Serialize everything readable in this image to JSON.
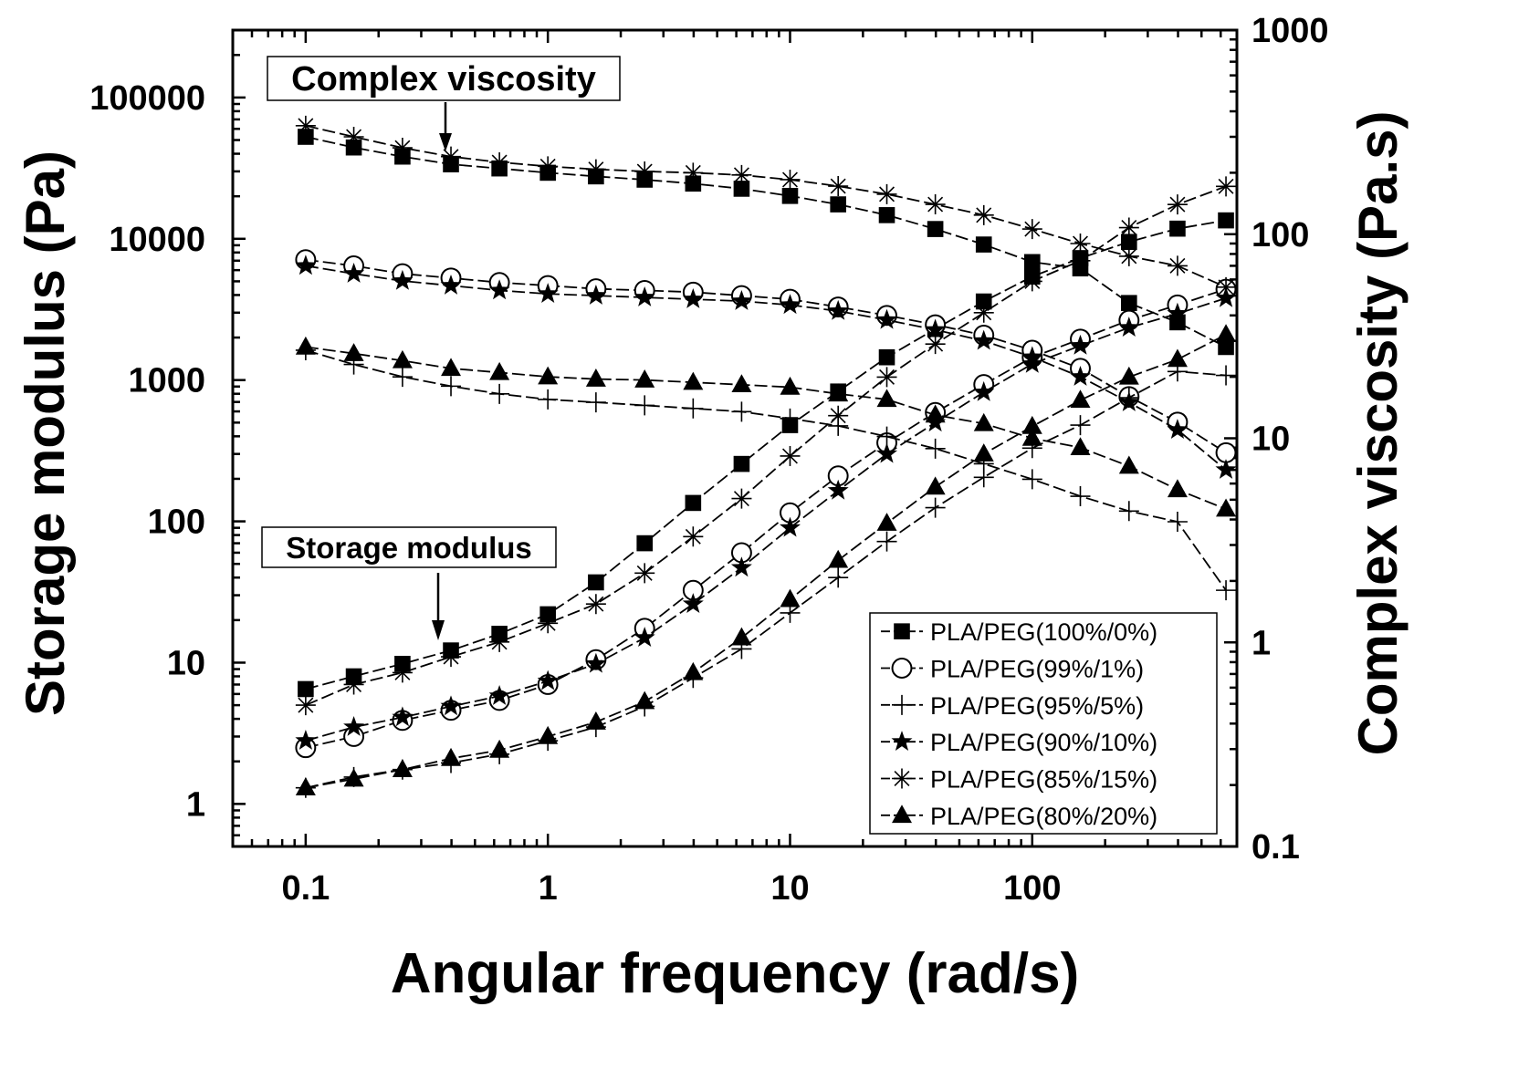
{
  "chart_data": {
    "type": "scatter",
    "xlabel": "Angular frequency (rad/s)",
    "ylabel": "Storage modulus (Pa)",
    "y2label": "Complex viscosity (Pa.s)",
    "x_scale": "log",
    "y_scale": "log",
    "y2_scale": "log",
    "xlim": [
      0.05,
      700
    ],
    "ylim": [
      0.5,
      300000
    ],
    "y2lim": [
      0.1,
      1000
    ],
    "x_ticks": [
      0.1,
      1,
      10,
      100
    ],
    "x_tick_labels": [
      "0.1",
      "1",
      "10",
      "100"
    ],
    "y_ticks": [
      1,
      10,
      100,
      1000,
      10000,
      100000
    ],
    "y_tick_labels": [
      "1",
      "10",
      "100",
      "1000",
      "10000",
      "100000"
    ],
    "y2_ticks": [
      0.1,
      1,
      10,
      100,
      1000
    ],
    "y2_tick_labels": [
      "0.1",
      "1",
      "10",
      "100",
      "1000"
    ],
    "grid": false,
    "legend_position": "bottom-right",
    "annotations": {
      "complex_viscosity": "Complex viscosity",
      "storage_modulus": "Storage modulus"
    },
    "x": [
      0.1,
      0.158,
      0.251,
      0.398,
      0.631,
      1,
      1.58,
      2.51,
      3.98,
      6.31,
      10,
      15.8,
      25.1,
      39.8,
      63.1,
      100,
      158,
      251,
      398,
      631
    ],
    "series": [
      {
        "name": "PLA/PEG(100%/0%)",
        "marker": "square-filled",
        "storage_modulus": [
          6.5,
          8,
          9.8,
          12.2,
          16,
          22,
          37,
          70,
          135,
          255,
          480,
          830,
          1450,
          2300,
          3600,
          5400,
          7300,
          9500,
          11800,
          13500
        ],
        "complex_viscosity": [
          300,
          266,
          240,
          220,
          210,
          200,
          192,
          185,
          177,
          167,
          154,
          140,
          124,
          106,
          89,
          73,
          68,
          46,
          37,
          28
        ]
      },
      {
        "name": "PLA/PEG(99%/1%)",
        "marker": "circle-open",
        "storage_modulus": [
          2.5,
          3,
          3.9,
          4.6,
          5.4,
          7,
          10.5,
          17.5,
          32.5,
          60,
          115,
          210,
          360,
          590,
          930,
          1450,
          1950,
          2650,
          3400,
          4400
        ],
        "complex_viscosity": [
          75,
          70,
          64,
          61,
          58,
          56,
          54,
          53,
          52,
          50,
          48,
          44,
          40,
          36,
          32,
          27,
          22,
          16,
          12,
          8.5
        ]
      },
      {
        "name": "PLA/PEG(95%/5%)",
        "marker": "plus",
        "storage_modulus": [
          1.3,
          1.55,
          1.75,
          1.95,
          2.25,
          2.8,
          3.5,
          4.9,
          7.8,
          12.5,
          22.5,
          40,
          72,
          125,
          205,
          330,
          480,
          750,
          1150,
          1080
        ],
        "complex_viscosity": [
          27,
          23,
          20,
          18,
          16.5,
          15.5,
          15,
          14.5,
          14,
          13.5,
          12.5,
          11.5,
          10.2,
          8.9,
          7.5,
          6.3,
          5.2,
          4.4,
          3.9,
          1.8
        ]
      },
      {
        "name": "PLA/PEG(90%/10%)",
        "marker": "star-filled",
        "storage_modulus": [
          2.8,
          3.5,
          4.1,
          4.9,
          5.8,
          7.4,
          9.8,
          15,
          26,
          47,
          90,
          165,
          300,
          500,
          820,
          1300,
          1750,
          2350,
          2950,
          3800
        ],
        "complex_viscosity": [
          70,
          64,
          59,
          56,
          53,
          51,
          50,
          49,
          48,
          47,
          45,
          42,
          38,
          34,
          30,
          25,
          20,
          15,
          11,
          7
        ]
      },
      {
        "name": "PLA/PEG(85%/15%)",
        "marker": "asterisk",
        "storage_modulus": [
          5,
          7,
          8.5,
          11,
          14,
          19,
          26,
          43,
          78,
          145,
          290,
          560,
          1050,
          1800,
          3000,
          5000,
          7000,
          12000,
          17500,
          23500
        ],
        "complex_viscosity": [
          340,
          300,
          265,
          240,
          225,
          215,
          208,
          203,
          200,
          195,
          185,
          172,
          157,
          140,
          124,
          106,
          90,
          78,
          70,
          55
        ]
      },
      {
        "name": "PLA/PEG(80%/20%)",
        "marker": "triangle-filled",
        "storage_modulus": [
          1.3,
          1.5,
          1.75,
          2.1,
          2.4,
          3,
          3.8,
          5.3,
          8.5,
          15,
          28,
          53,
          97,
          175,
          300,
          470,
          720,
          1050,
          1400,
          2100
        ],
        "complex_viscosity": [
          28,
          26,
          24,
          22,
          21,
          20,
          19.5,
          19.3,
          18.8,
          18.3,
          17.8,
          16.5,
          15.5,
          13,
          11.8,
          10,
          9,
          7.3,
          5.6,
          4.5
        ]
      }
    ]
  }
}
